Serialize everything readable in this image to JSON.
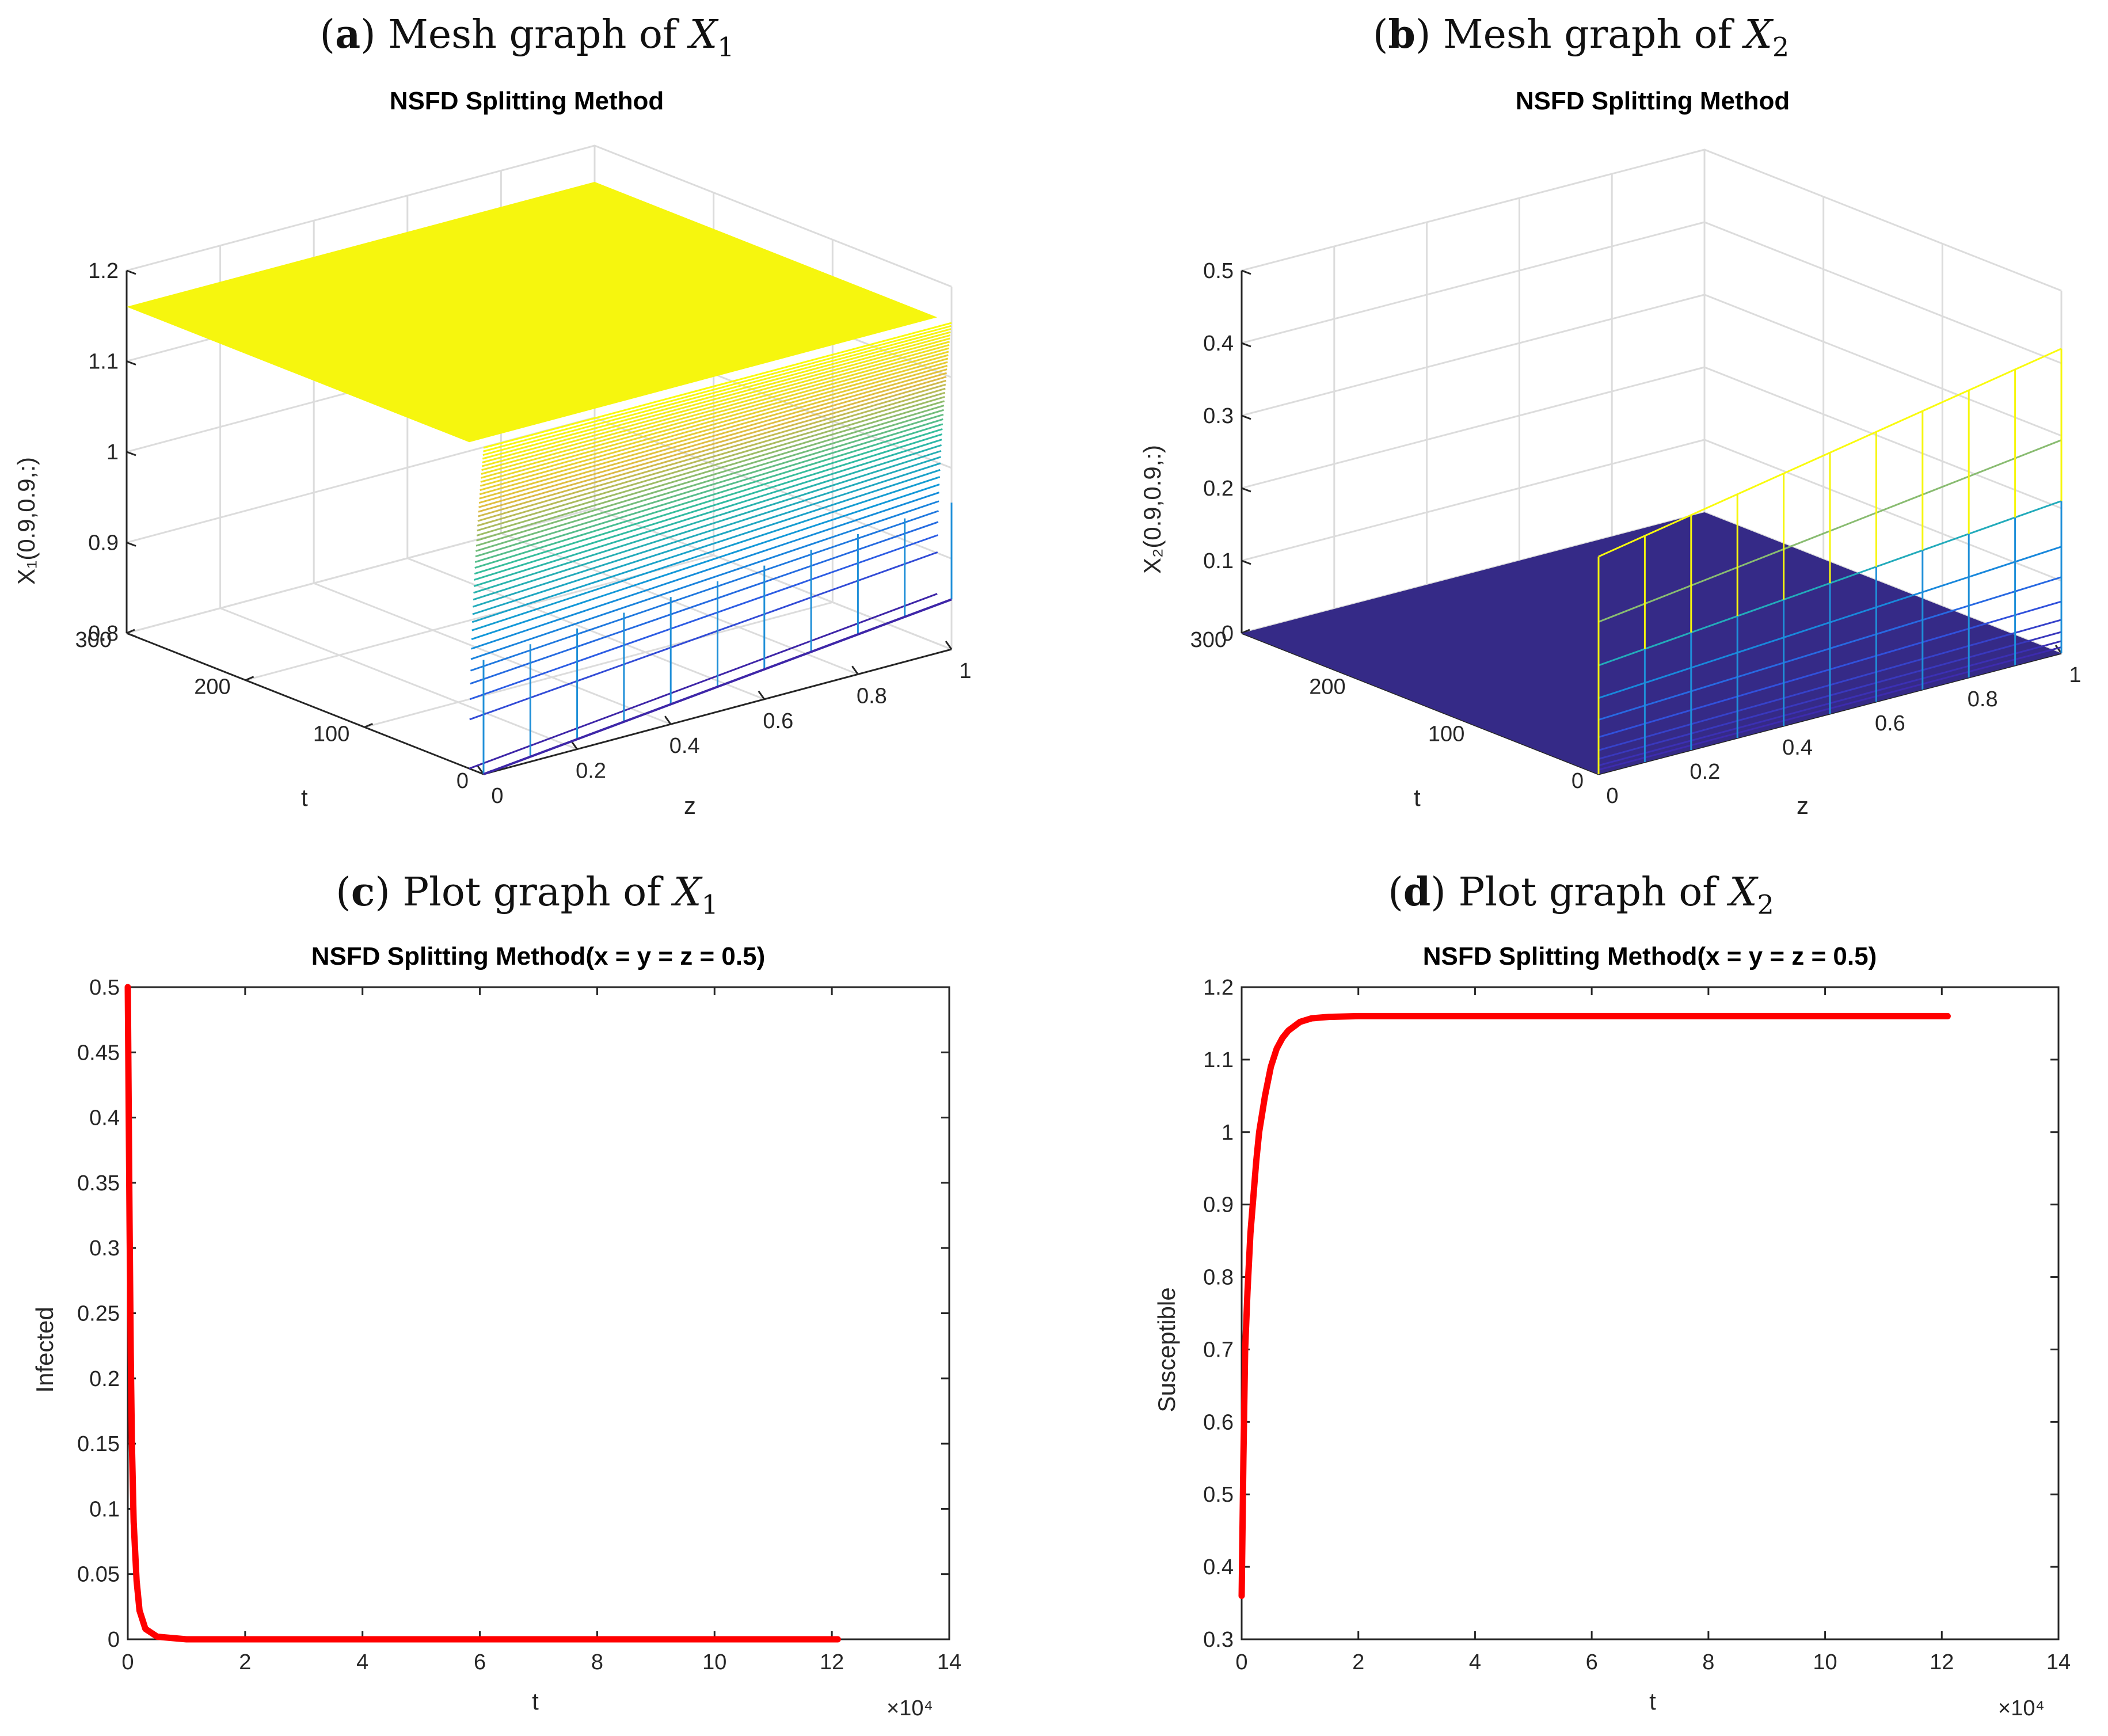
{
  "panels": [
    {
      "caption": {
        "letter": "a",
        "text": "Mesh graph of",
        "var": "X",
        "sub": "1"
      },
      "title": "NSFD Splitting Method",
      "ylabel": "X₁(0.9,0.9,:)",
      "xlabel": "z",
      "tlabel": "t"
    },
    {
      "caption": {
        "letter": "b",
        "text": "Mesh graph of",
        "var": "X",
        "sub": "2"
      },
      "title": "NSFD Splitting Method",
      "ylabel": "X₂(0.9,0.9,:)",
      "xlabel": "z",
      "tlabel": "t"
    },
    {
      "caption": {
        "letter": "c",
        "text": "Plot graph of",
        "var": "X",
        "sub": "1"
      },
      "title": "NSFD Splitting Method(x = y = z = 0.5)",
      "ylabel": "Infected",
      "xlabel": "t",
      "exponent": "×10⁴"
    },
    {
      "caption": {
        "letter": "d",
        "text": "Plot graph of",
        "var": "X",
        "sub": "2"
      },
      "title": "NSFD Splitting Method(x = y = z = 0.5)",
      "ylabel": "Susceptible",
      "xlabel": "t",
      "exponent": "×10⁴"
    }
  ],
  "chart_data": [
    {
      "type": "surface",
      "title": "NSFD Splitting Method",
      "zlabel": "X₁(0.9,0.9,:)",
      "xlabel": "z",
      "ylabel": "t",
      "zlim": [
        0.8,
        1.2
      ],
      "z_ticks": [
        "0.8",
        "0.9",
        "1",
        "1.1",
        "1.2"
      ],
      "x_ticks": [
        "0",
        "0.2",
        "0.4",
        "0.6",
        "0.8",
        "1"
      ],
      "t_ticks": [
        "0",
        "100",
        "200",
        "300"
      ],
      "z_values": [
        0.0,
        0.1,
        0.2,
        0.3,
        0.4,
        0.5,
        0.6,
        0.7,
        0.8,
        0.9,
        1.0
      ],
      "initial_values": [
        0.8,
        0.8055,
        0.811,
        0.8165,
        0.822,
        0.8275,
        0.833,
        0.8385,
        0.844,
        0.8495,
        0.855
      ],
      "steady_value": 1.16
    },
    {
      "type": "surface",
      "title": "NSFD Splitting Method",
      "zlabel": "X₂(0.9,0.9,:)",
      "xlabel": "z",
      "ylabel": "t",
      "zlim": [
        0,
        0.5
      ],
      "z_ticks": [
        "0",
        "0.1",
        "0.2",
        "0.3",
        "0.4",
        "0.5"
      ],
      "x_ticks": [
        "0",
        "0.2",
        "0.4",
        "0.6",
        "0.8",
        "1"
      ],
      "t_ticks": [
        "0",
        "100",
        "200",
        "300"
      ],
      "z_values": [
        0.0,
        0.1,
        0.2,
        0.3,
        0.4,
        0.5,
        0.6,
        0.7,
        0.8,
        0.9,
        1.0
      ],
      "initial_values": [
        0.3,
        0.312,
        0.324,
        0.336,
        0.348,
        0.36,
        0.372,
        0.384,
        0.396,
        0.408,
        0.42
      ],
      "steady_value": 0
    },
    {
      "type": "line",
      "title": "NSFD Splitting Method(x = y = z = 0.5)",
      "xlabel": "t",
      "ylabel": "Infected",
      "xlim": [
        0,
        140000
      ],
      "ylim": [
        0,
        0.5
      ],
      "x_ticks": [
        "0",
        "2",
        "4",
        "6",
        "8",
        "10",
        "12",
        "14"
      ],
      "y_ticks": [
        "0",
        "0.05",
        "0.1",
        "0.15",
        "0.2",
        "0.25",
        "0.3",
        "0.35",
        "0.4",
        "0.45",
        "0.5"
      ],
      "x_exponent": "×10⁴",
      "color": "#ff0000",
      "x": [
        0,
        150,
        300,
        500,
        700,
        1000,
        1500,
        2000,
        3000,
        5000,
        10000,
        30000,
        60000,
        90000,
        121000
      ],
      "y": [
        0.5,
        0.41,
        0.32,
        0.22,
        0.15,
        0.09,
        0.045,
        0.022,
        0.008,
        0.002,
        0.0,
        0.0,
        0.0,
        0.0,
        0.0
      ]
    },
    {
      "type": "line",
      "title": "NSFD Splitting Method(x = y = z = 0.5)",
      "xlabel": "t",
      "ylabel": "Susceptible",
      "xlim": [
        0,
        140000
      ],
      "ylim": [
        0.3,
        1.2
      ],
      "x_ticks": [
        "0",
        "2",
        "4",
        "6",
        "8",
        "10",
        "12",
        "14"
      ],
      "y_ticks": [
        "0.3",
        "0.4",
        "0.5",
        "0.6",
        "0.7",
        "0.8",
        "0.9",
        "1",
        "1.1",
        "1.2"
      ],
      "x_exponent": "×10⁴",
      "color": "#ff0000",
      "x": [
        0,
        300,
        600,
        1000,
        1500,
        2000,
        2500,
        3000,
        4000,
        5000,
        6000,
        7000,
        8000,
        10000,
        12000,
        15000,
        20000,
        40000,
        80000,
        121000
      ],
      "y": [
        0.36,
        0.55,
        0.7,
        0.78,
        0.86,
        0.91,
        0.96,
        1.0,
        1.05,
        1.09,
        1.115,
        1.13,
        1.14,
        1.152,
        1.157,
        1.159,
        1.16,
        1.16,
        1.16,
        1.16
      ]
    }
  ]
}
